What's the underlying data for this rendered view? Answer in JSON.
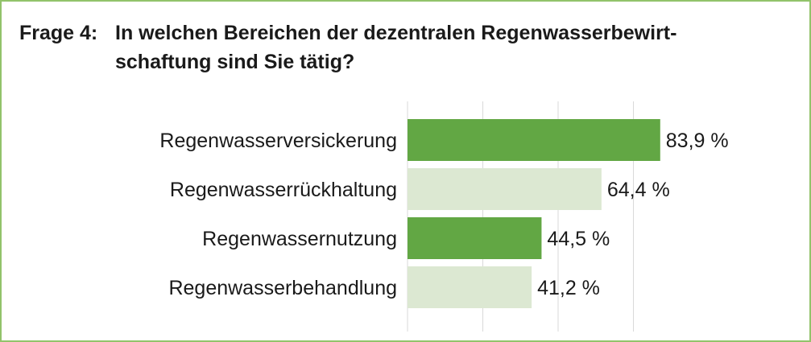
{
  "title": {
    "number": "Frage 4:",
    "line1": "In welchen Bereichen der dezentralen Regenwasserbewirt-",
    "line2": "schaftung sind Sie tätig?"
  },
  "colors": {
    "frame": "#92c36b",
    "bar_dark": "#62a744",
    "bar_light": "#dce8d2",
    "grid": "#d9d9d9"
  },
  "chart_data": {
    "type": "bar",
    "orientation": "horizontal",
    "categories": [
      "Regenwasserversickerung",
      "Regenwasserrückhaltung",
      "Regenwassernutzung",
      "Regenwasserbehandlung"
    ],
    "values": [
      83.9,
      64.4,
      44.5,
      41.2
    ],
    "value_labels": [
      "83,9 %",
      "64,4 %",
      "44,5 %",
      "41,2 %"
    ],
    "xlim": [
      0,
      100
    ],
    "grid": true,
    "legend": "none"
  }
}
